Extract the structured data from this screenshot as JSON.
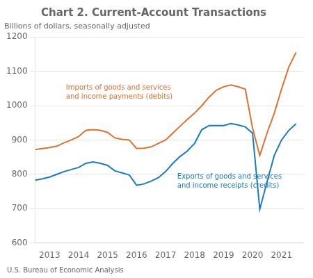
{
  "chart_data": {
    "type": "line",
    "title": "Chart 2. Current-Account Transactions",
    "subtitle": "Billions of dollars, seasonally adjusted",
    "footer": "U.S. Bureau of Economic Analysis",
    "x": [
      2012.5,
      2012.75,
      2013.0,
      2013.25,
      2013.5,
      2013.75,
      2014.0,
      2014.25,
      2014.5,
      2014.75,
      2015.0,
      2015.25,
      2015.5,
      2015.75,
      2016.0,
      2016.25,
      2016.5,
      2016.75,
      2017.0,
      2017.25,
      2017.5,
      2017.75,
      2018.0,
      2018.25,
      2018.5,
      2018.75,
      2019.0,
      2019.25,
      2019.5,
      2019.75,
      2020.0,
      2020.25,
      2020.5,
      2020.75,
      2021.0,
      2021.25,
      2021.5
    ],
    "series": [
      {
        "color": "#e07030",
        "values": [
          872,
          875,
          878,
          882,
          892,
          900,
          910,
          928,
          930,
          928,
          922,
          906,
          902,
          900,
          875,
          876,
          880,
          890,
          900,
          920,
          940,
          960,
          978,
          1000,
          1025,
          1045,
          1055,
          1060,
          1055,
          1048,
          935,
          855,
          920,
          978,
          1048,
          1112,
          1155
        ]
      },
      {
        "color": "#1a7abf",
        "values": [
          783,
          787,
          792,
          800,
          808,
          814,
          820,
          832,
          836,
          832,
          826,
          810,
          804,
          798,
          768,
          772,
          780,
          790,
          808,
          832,
          852,
          868,
          890,
          930,
          942,
          942,
          942,
          948,
          944,
          938,
          920,
          698,
          778,
          855,
          900,
          928,
          947
        ]
      }
    ],
    "annotations": [
      {
        "text": [
          "Imports of goods and services",
          "and income payments (debits)"
        ],
        "color": "#e07030"
      },
      {
        "text": [
          "Exports of goods and services",
          "and income receipts (credits)"
        ],
        "color": "#1a7abf"
      }
    ],
    "xlim": [
      2012.5,
      2021.75
    ],
    "xticks": [
      2013,
      2014,
      2015,
      2016,
      2017,
      2018,
      2019,
      2020,
      2021
    ],
    "ylim": [
      600,
      1200
    ],
    "yticks": [
      600,
      700,
      800,
      900,
      1000,
      1100,
      1200
    ],
    "grid": true
  }
}
